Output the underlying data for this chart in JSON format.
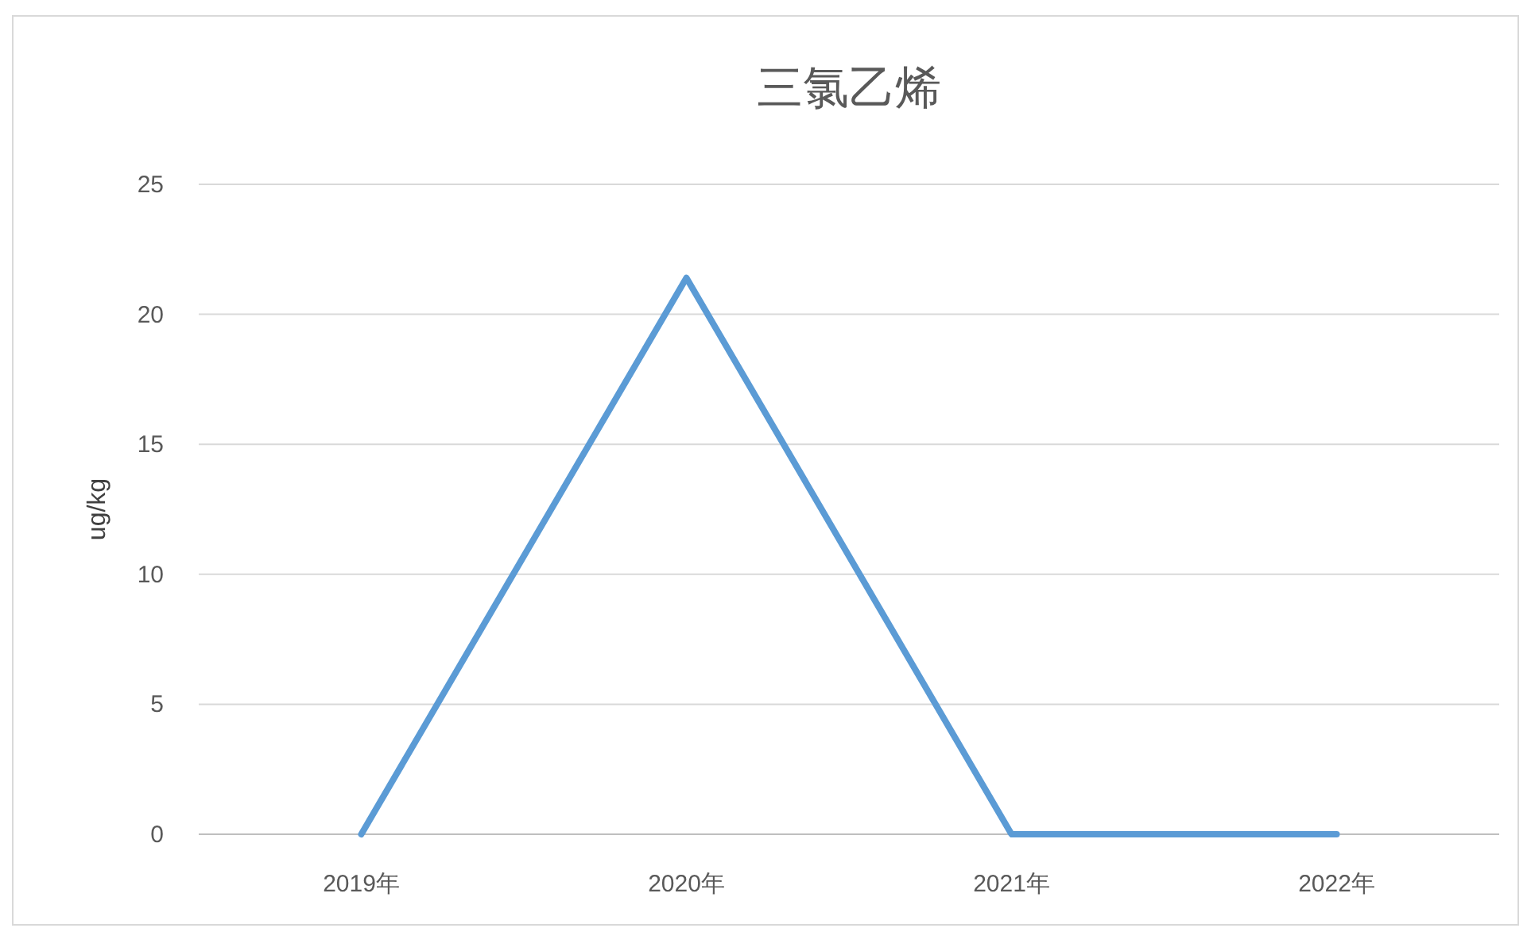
{
  "chart_data": {
    "type": "line",
    "title": "三氯乙烯",
    "ylabel": "ug/kg",
    "categories": [
      "2019年",
      "2020年",
      "2021年",
      "2022年"
    ],
    "series": [
      {
        "color": "#5b9bd5",
        "values": [
          0,
          21.4,
          0,
          0
        ]
      }
    ],
    "ylim": [
      0,
      25
    ],
    "yticks": [
      0,
      5,
      10,
      15,
      20,
      25
    ],
    "grid": "y"
  }
}
